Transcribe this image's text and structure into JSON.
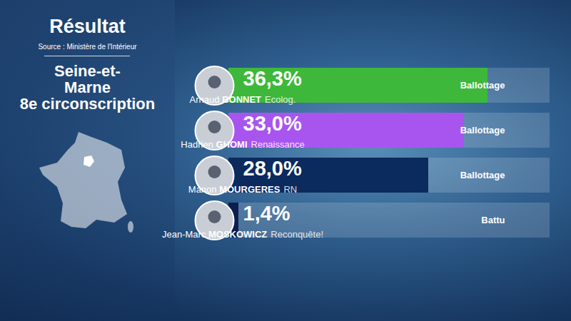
{
  "chart_data": {
    "type": "bar",
    "orientation": "horizontal",
    "title": "Résultat",
    "subtitle": "Source : Ministère de l'Intérieur",
    "annotations": [
      "Seine-et-Marne",
      "8e circonscription"
    ],
    "categories": [
      "Arnaud BONNET",
      "Hadrien GHOMI",
      "Manon MOURGERES",
      "Jean-Marc MOSKOWICZ"
    ],
    "parties": [
      "Ecolog.",
      "Renaissance",
      "RN",
      "Reconquête!"
    ],
    "status": [
      "Ballottage",
      "Ballottage",
      "Ballottage",
      "Battu"
    ],
    "values": [
      36.3,
      33.0,
      28.0,
      1.4
    ],
    "value_labels": [
      "36,3%",
      "33,0%",
      "28,0%",
      "1,4%"
    ],
    "colors": [
      "#3db83a",
      "#a855f0",
      "#0b2a5e",
      "#0b1f4f"
    ],
    "xlim": [
      0,
      45
    ],
    "data_labels": true,
    "tick_labels": false
  }
}
